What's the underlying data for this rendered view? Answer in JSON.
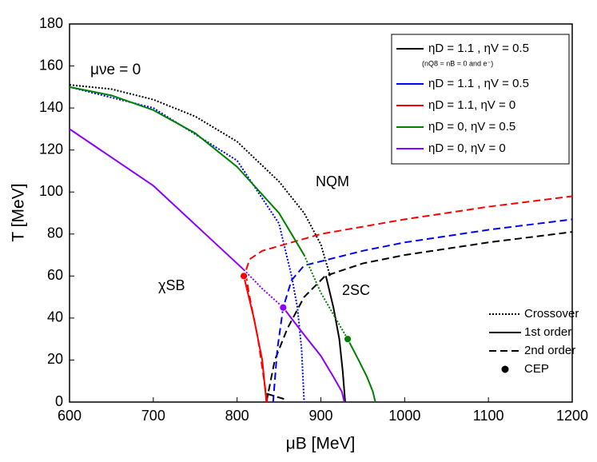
{
  "chart_data": {
    "type": "phase-diagram",
    "xlabel": "μB [MeV]",
    "ylabel": "T [MeV]",
    "xlim": [
      600,
      1200
    ],
    "ylim": [
      0,
      180
    ],
    "xticks": [
      600,
      700,
      800,
      900,
      1000,
      1100,
      1200
    ],
    "yticks": [
      0,
      20,
      40,
      60,
      80,
      100,
      120,
      140,
      160,
      180
    ],
    "annotations": [
      "μνe = 0",
      "NQM",
      "χSB",
      "2SC"
    ],
    "legend_note": "(nQ8 = nB = 0 and e⁻)",
    "line_styles": [
      {
        "label": "Crossover",
        "style": "crossover"
      },
      {
        "label": "1st order",
        "style": "first"
      },
      {
        "label": "2nd order",
        "style": "second"
      }
    ],
    "cep_label": "CEP",
    "series": [
      {
        "name": "ηD = 1.1 , ηV = 0.5",
        "color": "#000000",
        "segments": [
          {
            "style": "crossover",
            "x": [
              600,
              650,
              700,
              750,
              800,
              850,
              880,
              900,
              911
            ],
            "y": [
              151,
              149,
              144,
              136,
              124,
              105,
              90,
              75,
              60
            ]
          },
          {
            "style": "first",
            "x": [
              906,
              915,
              922,
              926,
              929
            ],
            "y": [
              60,
              45,
              30,
              15,
              0
            ]
          },
          {
            "style": "second",
            "x": [
              835,
              845,
              860,
              880,
              905,
              950,
              1000,
              1100,
              1200
            ],
            "y": [
              0,
              20,
              35,
              50,
              60,
              66,
              70,
              76,
              81
            ]
          },
          {
            "style": "second",
            "x": [
              835,
              860
            ],
            "y": [
              4,
              1
            ]
          }
        ]
      },
      {
        "name": "ηD = 1.1 , ηV = 0.5",
        "color": "#0000ff",
        "segments": [
          {
            "style": "crossover",
            "x": [
              600,
              700,
              800,
              850,
              865,
              872,
              877,
              880
            ],
            "y": [
              150,
              140,
              115,
              85,
              60,
              45,
              25,
              0
            ]
          },
          {
            "style": "second",
            "x": [
              843,
              848,
              855,
              865,
              880,
              950,
              1000,
              1100,
              1200
            ],
            "y": [
              0,
              25,
              45,
              58,
              65,
              72,
              76,
              82,
              87
            ]
          }
        ]
      },
      {
        "name": "ηD = 1.1, ηV = 0",
        "color": "#ff0000",
        "segments": [
          {
            "style": "first",
            "x": [
              808,
              820,
              830,
              835
            ],
            "y": [
              60,
              40,
              20,
              0
            ]
          },
          {
            "style": "second",
            "x": [
              836,
              825,
              814,
              810,
              815,
              830,
              900,
              1000,
              1100,
              1200
            ],
            "y": [
              0,
              30,
              52,
              62,
              68,
              72,
              80,
              87,
              93,
              98
            ]
          }
        ],
        "cep": {
          "x": 808,
          "y": 60
        }
      },
      {
        "name": "ηD = 0, ηV = 0.5",
        "color": "#008000",
        "segments": [
          {
            "style": "first",
            "x": [
              600,
              650,
              700,
              750,
              800,
              850,
              880
            ],
            "y": [
              150,
              146,
              139,
              128,
              112,
              90,
              70
            ]
          },
          {
            "style": "crossover",
            "x": [
              880,
              900,
              932
            ],
            "y": [
              70,
              52,
              30
            ]
          },
          {
            "style": "first",
            "x": [
              932,
              945,
              955,
              962,
              965
            ],
            "y": [
              30,
              20,
              12,
              5,
              0
            ]
          }
        ],
        "cep": {
          "x": 932,
          "y": 30
        }
      },
      {
        "name": "ηD = 0, ηV = 0",
        "color": "#8b00ff",
        "segments": [
          {
            "style": "first",
            "x": [
              600,
              700,
              808
            ],
            "y": [
              130,
              103,
              63
            ]
          },
          {
            "style": "crossover",
            "x": [
              808,
              830,
              855
            ],
            "y": [
              63,
              54,
              45
            ]
          },
          {
            "style": "first",
            "x": [
              855,
              880,
              900,
              915,
              925,
              928
            ],
            "y": [
              45,
              32,
              22,
              12,
              5,
              0
            ]
          }
        ],
        "cep": {
          "x": 855,
          "y": 45
        }
      }
    ]
  }
}
